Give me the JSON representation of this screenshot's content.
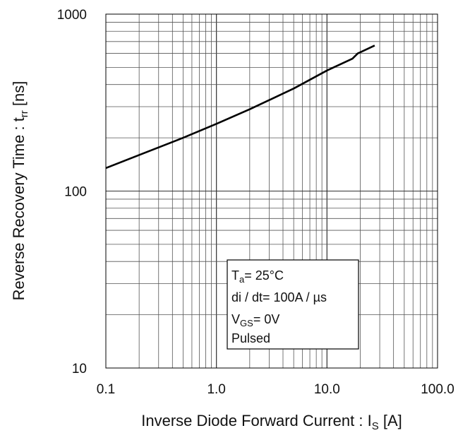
{
  "chart_data": {
    "type": "line",
    "x_scale": "log",
    "y_scale": "log",
    "xlim": [
      0.1,
      100
    ],
    "ylim": [
      10,
      1000
    ],
    "grid": true,
    "x_ticks": [
      "0.1",
      "1.0",
      "10.0",
      "100.0"
    ],
    "y_ticks": [
      "10",
      "100",
      "1000"
    ],
    "xlabel": {
      "main": "Inverse Diode Forward Current : I",
      "sub": "S",
      "unit": " [A]"
    },
    "ylabel": {
      "main": "Reverse Recovery Time : t",
      "sub": "rr",
      "unit": " [ns]"
    },
    "legend": {
      "placement": "bottom-center",
      "lines": [
        {
          "main": "T",
          "sub": "a",
          "rest": "= 25°C"
        },
        {
          "main": "di / dt= 100A  / µs",
          "sub": "",
          "rest": ""
        },
        {
          "main": "V",
          "sub": "GS",
          "rest": "= 0V"
        },
        {
          "main": "Pulsed",
          "sub": "",
          "rest": ""
        }
      ]
    },
    "series": [
      {
        "color": "#000000",
        "x": [
          0.1,
          0.2,
          0.5,
          1.0,
          2.0,
          5.0,
          10.0,
          17.0,
          19.0,
          27.0
        ],
        "y": [
          135,
          160,
          200,
          240,
          290,
          380,
          480,
          560,
          600,
          665
        ]
      }
    ]
  }
}
